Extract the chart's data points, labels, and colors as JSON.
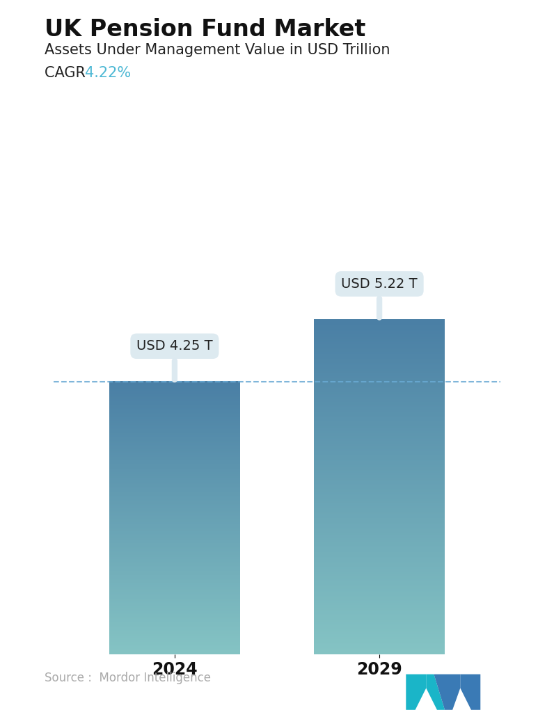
{
  "title": "UK Pension Fund Market",
  "subtitle": "Assets Under Management Value in USD Trillion",
  "cagr_label": "CAGR ",
  "cagr_value": "4.22%",
  "cagr_color": "#4db8d4",
  "categories": [
    "2024",
    "2029"
  ],
  "values": [
    4.25,
    5.22
  ],
  "bar_labels": [
    "USD 4.25 T",
    "USD 5.22 T"
  ],
  "bar_color_top": "#4a7fa5",
  "bar_color_bottom": "#85c4c4",
  "dashed_line_color": "#6aaad4",
  "dashed_line_value": 4.25,
  "background_color": "#ffffff",
  "source_text": "Source :  Mordor Intelligence",
  "source_color": "#aaaaaa",
  "title_fontsize": 24,
  "subtitle_fontsize": 15,
  "cagr_fontsize": 15,
  "label_fontsize": 14,
  "tick_fontsize": 17,
  "source_fontsize": 12,
  "ylim": [
    0,
    6.5
  ],
  "bar_width": 0.28,
  "x_positions": [
    0.28,
    0.72
  ]
}
